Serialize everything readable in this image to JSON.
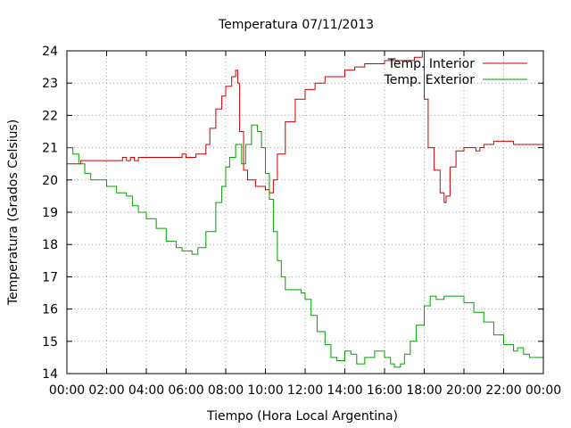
{
  "chart_data": {
    "type": "line",
    "title": "Temperatura 07/11/2013",
    "xlabel": "Tiempo (Hora Local Argentina)",
    "ylabel": "Temperatura (Grados Celsius)",
    "xlim": [
      0,
      24
    ],
    "ylim": [
      14,
      24
    ],
    "grid": true,
    "legend": "top-right",
    "x_ticks": [
      "00:00",
      "02:00",
      "04:00",
      "06:00",
      "08:00",
      "10:00",
      "12:00",
      "14:00",
      "16:00",
      "18:00",
      "20:00",
      "22:00",
      "00:00"
    ],
    "y_ticks": [
      "14",
      "15",
      "16",
      "17",
      "18",
      "19",
      "20",
      "21",
      "22",
      "23",
      "24"
    ],
    "series": [
      {
        "name": "Temp. Interior",
        "color": "#cc0000",
        "x": [
          0,
          0.5,
          0.7,
          1,
          2,
          2.6,
          2.8,
          3,
          3.2,
          3.4,
          3.6,
          4,
          5,
          5.5,
          5.8,
          6,
          6.5,
          6.8,
          7,
          7.2,
          7.5,
          7.8,
          8,
          8.3,
          8.5,
          8.6,
          8.7,
          8.9,
          9.1,
          9.5,
          10,
          10.2,
          10.4,
          10.6,
          11,
          11.5,
          12,
          12.5,
          13,
          14,
          14.5,
          15,
          16,
          17,
          17.5,
          17.9,
          18.0,
          18.2,
          18.5,
          18.8,
          19,
          19.1,
          19.3,
          19.6,
          20,
          20.5,
          20.6,
          20.8,
          21,
          21.5,
          22,
          22.5,
          23,
          24
        ],
        "values": [
          20.5,
          20.5,
          20.6,
          20.6,
          20.6,
          20.6,
          20.7,
          20.6,
          20.7,
          20.6,
          20.7,
          20.7,
          20.7,
          20.7,
          20.8,
          20.7,
          20.8,
          20.8,
          21.1,
          21.6,
          22.2,
          22.6,
          22.9,
          23.2,
          23.4,
          23.0,
          21.5,
          20.3,
          20.0,
          19.8,
          19.7,
          19.6,
          20.0,
          20.8,
          21.8,
          22.5,
          22.8,
          23.0,
          23.2,
          23.4,
          23.5,
          23.6,
          23.7,
          23.7,
          23.8,
          24.0,
          22.5,
          21.0,
          20.3,
          19.6,
          19.3,
          19.5,
          20.4,
          20.9,
          21.0,
          21.0,
          20.9,
          21.0,
          21.1,
          21.2,
          21.2,
          21.1,
          21.1,
          21.1
        ]
      },
      {
        "name": "Temp. Exterior",
        "color": "#00a000",
        "x": [
          0,
          0.3,
          0.6,
          0.9,
          1.2,
          1.6,
          2,
          2.5,
          3,
          3.3,
          3.6,
          4,
          4.5,
          5,
          5.5,
          5.8,
          6,
          6.3,
          6.6,
          7,
          7.5,
          7.8,
          8,
          8.2,
          8.5,
          8.8,
          9,
          9.3,
          9.6,
          9.8,
          10,
          10.2,
          10.4,
          10.6,
          10.8,
          11,
          11.3,
          11.8,
          12,
          12.3,
          12.6,
          13,
          13.3,
          13.6,
          14,
          14.3,
          14.6,
          15,
          15.5,
          15.8,
          16,
          16.3,
          16.5,
          16.8,
          17,
          17.3,
          17.6,
          18,
          18.3,
          18.6,
          19,
          19.5,
          20,
          20.5,
          21,
          21.5,
          22,
          22.5,
          22.7,
          23,
          23.3,
          23.6,
          24
        ],
        "values": [
          21.0,
          20.8,
          20.5,
          20.2,
          20.0,
          20.0,
          19.8,
          19.6,
          19.5,
          19.2,
          19.0,
          18.8,
          18.5,
          18.1,
          17.9,
          17.8,
          17.8,
          17.7,
          17.9,
          18.4,
          19.3,
          19.8,
          20.4,
          20.7,
          21.1,
          20.5,
          21.1,
          21.7,
          21.5,
          21.0,
          20.2,
          19.4,
          18.4,
          17.5,
          17.0,
          16.6,
          16.6,
          16.5,
          16.3,
          15.8,
          15.3,
          14.9,
          14.5,
          14.4,
          14.7,
          14.6,
          14.3,
          14.5,
          14.7,
          14.7,
          14.5,
          14.3,
          14.2,
          14.3,
          14.6,
          15.0,
          15.5,
          16.1,
          16.4,
          16.3,
          16.4,
          16.4,
          16.2,
          15.9,
          15.6,
          15.2,
          14.9,
          14.7,
          14.8,
          14.6,
          14.5,
          14.5,
          14.5
        ]
      }
    ]
  }
}
